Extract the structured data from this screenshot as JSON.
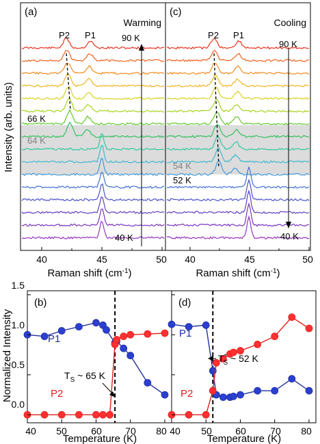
{
  "colors": {
    "p1": "#1f2f9e",
    "p2": "#e01f1f",
    "p1_fill": "#2b3fd0",
    "p2_fill": "#ff3030",
    "shade": "#dcdcdc",
    "spectra": [
      "#e8321c",
      "#f0601c",
      "#f08a1c",
      "#f0b41c",
      "#d8d21c",
      "#a8d21c",
      "#60c82c",
      "#30c060",
      "#30c8a0",
      "#40b8d0",
      "#4098d8",
      "#4070d8",
      "#4850c8",
      "#5c3cc0",
      "#7832c0",
      "#9632c0"
    ]
  },
  "top": {
    "ylabel": "Intensity (arb. units)",
    "xlabel": "Raman shift (cm",
    "xlabel_sup": "-1",
    "xlabel_end": ")",
    "panel_a": {
      "letter": "(a)",
      "mode": "Warming",
      "peak_p2": "P2",
      "peak_p1": "P1",
      "label_top": "90 K",
      "label_66": "66 K",
      "label_64": "64 K",
      "label_bottom": "40 K",
      "xticks": [
        "40",
        "45",
        "50"
      ]
    },
    "panel_c": {
      "letter": "(c)",
      "mode": "Cooling",
      "peak_p2": "P2",
      "peak_p1": "P1",
      "label_top": "90 K",
      "label_54": "54 K",
      "label_52": "52 K",
      "label_bottom": "40 K",
      "xticks": [
        "40",
        "45",
        "50"
      ]
    }
  },
  "bottom": {
    "ylabel": "Normalized Intensity",
    "xlabel": "Temperature (K)",
    "panel_b": {
      "letter": "(b)",
      "p1": "P1",
      "p2": "P2",
      "ts_main": "T",
      "ts_sub": "S",
      "ts_rest": " ~ 65 K",
      "xticks": [
        "40",
        "50",
        "60",
        "70",
        "80"
      ],
      "yticks": [
        "0.0",
        "0.5",
        "1.0",
        "1.5"
      ]
    },
    "panel_d": {
      "letter": "(d)",
      "p1": "P1",
      "p2": "P2",
      "ts_main": "T",
      "ts_star": "*",
      "ts_sub": "S",
      "ts_rest": " ~ 52 K",
      "xticks": [
        "40",
        "50",
        "60",
        "70",
        "80"
      ]
    }
  },
  "chart_data": [
    {
      "type": "scatter",
      "title": "(b)",
      "xlabel": "Temperature (K)",
      "ylabel": "Normalized Intensity",
      "xlim": [
        40,
        82
      ],
      "ylim": [
        -0.1,
        1.55
      ],
      "transition_T": 65.5,
      "series": [
        {
          "name": "P1",
          "x": [
            40,
            45,
            50,
            55,
            60,
            62,
            63,
            65.5,
            66,
            68,
            70,
            75,
            80
          ],
          "y": [
            1.0,
            0.98,
            1.05,
            1.1,
            1.15,
            1.12,
            1.06,
            0.9,
            0.92,
            0.83,
            0.74,
            0.4,
            0.25
          ]
        },
        {
          "name": "P2",
          "x": [
            40,
            45,
            50,
            55,
            60,
            62,
            64,
            65.5,
            66,
            68,
            70,
            75,
            80
          ],
          "y": [
            0.0,
            0.0,
            0.0,
            0.0,
            0.0,
            0.0,
            0.0,
            0.88,
            0.94,
            0.98,
            1.0,
            1.01,
            1.02
          ]
        }
      ]
    },
    {
      "type": "scatter",
      "title": "(d)",
      "xlabel": "Temperature (K)",
      "xlim": [
        40,
        82
      ],
      "ylim": [
        -0.1,
        1.55
      ],
      "transition_T": 52,
      "series": [
        {
          "name": "P1",
          "x": [
            40,
            45,
            50,
            52,
            53,
            55,
            57,
            58,
            60,
            65,
            70,
            75,
            80
          ],
          "y": [
            1.13,
            1.1,
            1.12,
            0.55,
            0.25,
            0.22,
            0.22,
            0.23,
            0.25,
            0.3,
            0.3,
            0.45,
            0.3
          ]
        },
        {
          "name": "P2",
          "x": [
            40,
            45,
            50,
            52,
            53,
            55,
            57,
            58,
            60,
            65,
            70,
            75,
            80
          ],
          "y": [
            0.0,
            0.0,
            0.0,
            0.3,
            0.65,
            0.7,
            0.76,
            0.78,
            0.8,
            0.88,
            0.98,
            1.22,
            1.08
          ]
        }
      ]
    }
  ]
}
